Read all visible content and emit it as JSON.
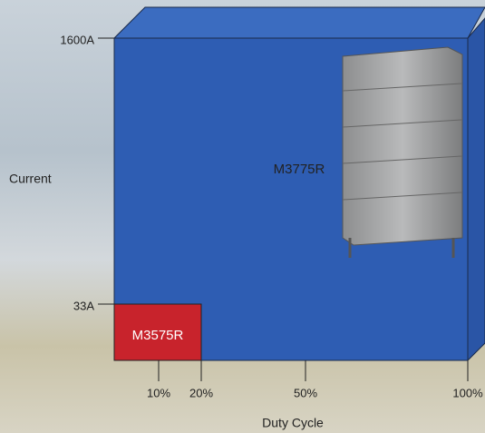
{
  "y_axis": {
    "label": "Current",
    "ticks": [
      "1600A",
      "33A"
    ]
  },
  "x_axis": {
    "label": "Duty Cycle",
    "ticks": [
      "10%",
      "20%",
      "50%",
      "100%"
    ]
  },
  "products": [
    {
      "label": "M3775R"
    },
    {
      "label": "M3575R"
    }
  ]
}
